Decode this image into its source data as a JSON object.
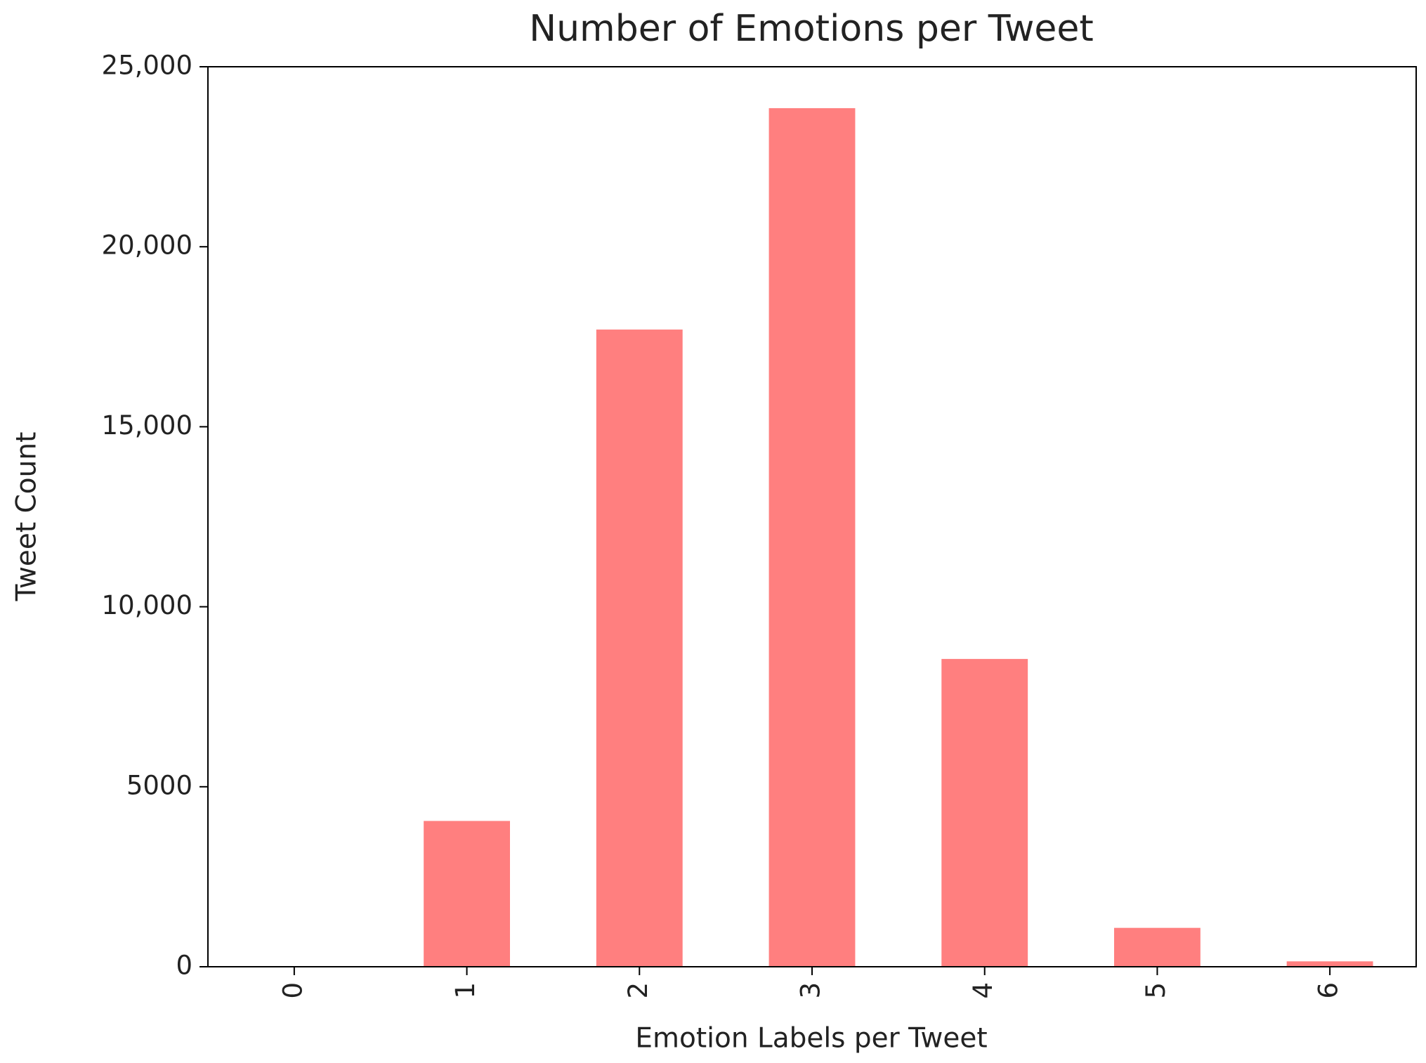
{
  "chart_data": {
    "type": "bar",
    "title": "Number of Emotions per Tweet",
    "x_label": "Emotion Labels per Tweet",
    "y_label": "Tweet Count",
    "categories": [
      "0",
      "1",
      "2",
      "3",
      "4",
      "5",
      "6"
    ],
    "values": [
      0,
      4050,
      17700,
      23850,
      8550,
      1080,
      150
    ],
    "color": "#ff7f7f",
    "ylim": [
      0,
      25000
    ],
    "yticks": [
      0,
      5000,
      {
        "value": 10000,
        "label": "10,000"
      },
      {
        "value": 15000,
        "label": "15,000"
      },
      {
        "value": 20000,
        "label": "20,000"
      },
      {
        "value": 25000,
        "label": "25,000"
      }
    ],
    "grid": false
  }
}
